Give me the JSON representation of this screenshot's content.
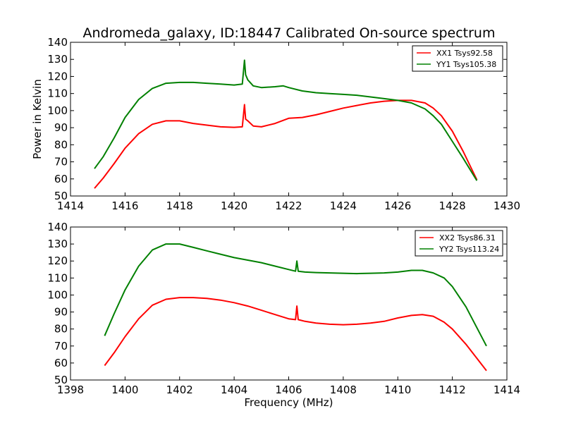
{
  "figure": {
    "title": "Andromeda_galaxy, ID:18447 Calibrated On-source spectrum"
  },
  "chart_data": [
    {
      "type": "line",
      "title": "Andromeda_galaxy, ID:18447 Calibrated On-source spectrum",
      "xlabel": "",
      "ylabel": "Power in Kelvin",
      "xlim": [
        1414,
        1430
      ],
      "ylim": [
        50,
        140
      ],
      "xticks": [
        1414,
        1416,
        1418,
        1420,
        1422,
        1424,
        1426,
        1428,
        1430
      ],
      "yticks": [
        50,
        60,
        70,
        80,
        90,
        100,
        110,
        120,
        130,
        140
      ],
      "legend_position": "upper right",
      "grid": false,
      "series": [
        {
          "name": "XX1 Tsys92.58",
          "color": "#ff0000",
          "x": [
            1414.88,
            1415.2,
            1415.6,
            1416.0,
            1416.5,
            1417.0,
            1417.5,
            1418.0,
            1418.5,
            1419.0,
            1419.5,
            1420.0,
            1420.3,
            1420.38,
            1420.42,
            1420.5,
            1420.7,
            1421.0,
            1421.5,
            1422.0,
            1422.5,
            1423.0,
            1423.5,
            1424.0,
            1424.5,
            1425.0,
            1425.5,
            1426.0,
            1426.5,
            1427.0,
            1427.3,
            1427.6,
            1428.0,
            1428.4,
            1428.9
          ],
          "y": [
            54.5,
            60.5,
            69,
            78,
            86.5,
            92,
            94,
            94,
            92.5,
            91.5,
            90.5,
            90.2,
            90.5,
            103.5,
            95,
            94,
            91,
            90.5,
            92.5,
            95.5,
            96,
            97.5,
            99.5,
            101.5,
            103,
            104.5,
            105.5,
            106,
            106,
            104.5,
            101.5,
            97,
            88,
            76,
            59.5
          ]
        },
        {
          "name": "YY1 Tsys105.38",
          "color": "#008000",
          "x": [
            1414.88,
            1415.2,
            1415.6,
            1416.0,
            1416.5,
            1417.0,
            1417.5,
            1418.0,
            1418.5,
            1419.0,
            1419.5,
            1420.0,
            1420.3,
            1420.38,
            1420.42,
            1420.5,
            1420.7,
            1421.0,
            1421.5,
            1421.8,
            1422.0,
            1422.5,
            1423.0,
            1423.5,
            1424.0,
            1424.5,
            1425.0,
            1425.5,
            1426.0,
            1426.5,
            1427.0,
            1427.3,
            1427.6,
            1428.0,
            1428.4,
            1428.9
          ],
          "y": [
            66,
            73,
            84,
            96,
            106.5,
            113,
            116,
            116.5,
            116.5,
            116,
            115.5,
            115,
            115.5,
            129.5,
            121,
            118,
            114.5,
            113.5,
            114,
            114.5,
            113.5,
            111.5,
            110.5,
            110,
            109.5,
            109,
            108,
            107,
            106,
            104.5,
            101,
            97,
            92,
            82,
            72,
            59
          ]
        }
      ]
    },
    {
      "type": "line",
      "title": "",
      "xlabel": "Frequency (MHz)",
      "ylabel": "",
      "xlim": [
        1398,
        1414
      ],
      "ylim": [
        50,
        140
      ],
      "xticks": [
        1398,
        1400,
        1402,
        1404,
        1406,
        1408,
        1410,
        1412,
        1414
      ],
      "yticks": [
        50,
        60,
        70,
        80,
        90,
        100,
        110,
        120,
        130,
        140
      ],
      "legend_position": "upper right",
      "grid": false,
      "series": [
        {
          "name": "XX2 Tsys86.31",
          "color": "#ff0000",
          "x": [
            1399.25,
            1399.6,
            1400.0,
            1400.5,
            1401.0,
            1401.5,
            1402.0,
            1402.5,
            1403.0,
            1403.5,
            1404.0,
            1404.5,
            1405.0,
            1405.5,
            1406.0,
            1406.25,
            1406.3,
            1406.35,
            1406.6,
            1407.0,
            1407.5,
            1408.0,
            1408.5,
            1409.0,
            1409.5,
            1410.0,
            1410.5,
            1410.9,
            1411.3,
            1411.7,
            1412.0,
            1412.5,
            1413.25
          ],
          "y": [
            58.5,
            66,
            75.5,
            86,
            94,
            97.5,
            98.5,
            98.5,
            98,
            97,
            95.5,
            93.5,
            91,
            88.5,
            86,
            85.5,
            93.5,
            85.5,
            84.5,
            83.5,
            82.8,
            82.5,
            82.8,
            83.5,
            84.5,
            86.5,
            88,
            88.5,
            87.5,
            84,
            80,
            71,
            55.5
          ]
        },
        {
          "name": "YY2 Tsys113.24",
          "color": "#008000",
          "x": [
            1399.25,
            1399.6,
            1400.0,
            1400.5,
            1401.0,
            1401.5,
            1402.0,
            1402.5,
            1403.0,
            1403.5,
            1404.0,
            1404.5,
            1405.0,
            1405.5,
            1406.0,
            1406.25,
            1406.3,
            1406.35,
            1406.6,
            1407.0,
            1407.5,
            1408.0,
            1408.5,
            1409.0,
            1409.5,
            1410.0,
            1410.5,
            1410.9,
            1411.3,
            1411.7,
            1412.0,
            1412.5,
            1413.25
          ],
          "y": [
            76,
            89,
            103,
            117,
            126.5,
            130,
            130,
            128,
            126,
            124,
            122,
            120.5,
            119,
            117,
            115,
            114,
            120,
            114,
            113.5,
            113.2,
            113,
            112.8,
            112.6,
            112.8,
            113,
            113.5,
            114.5,
            114.5,
            113,
            110,
            105,
            93,
            70
          ]
        }
      ]
    }
  ]
}
